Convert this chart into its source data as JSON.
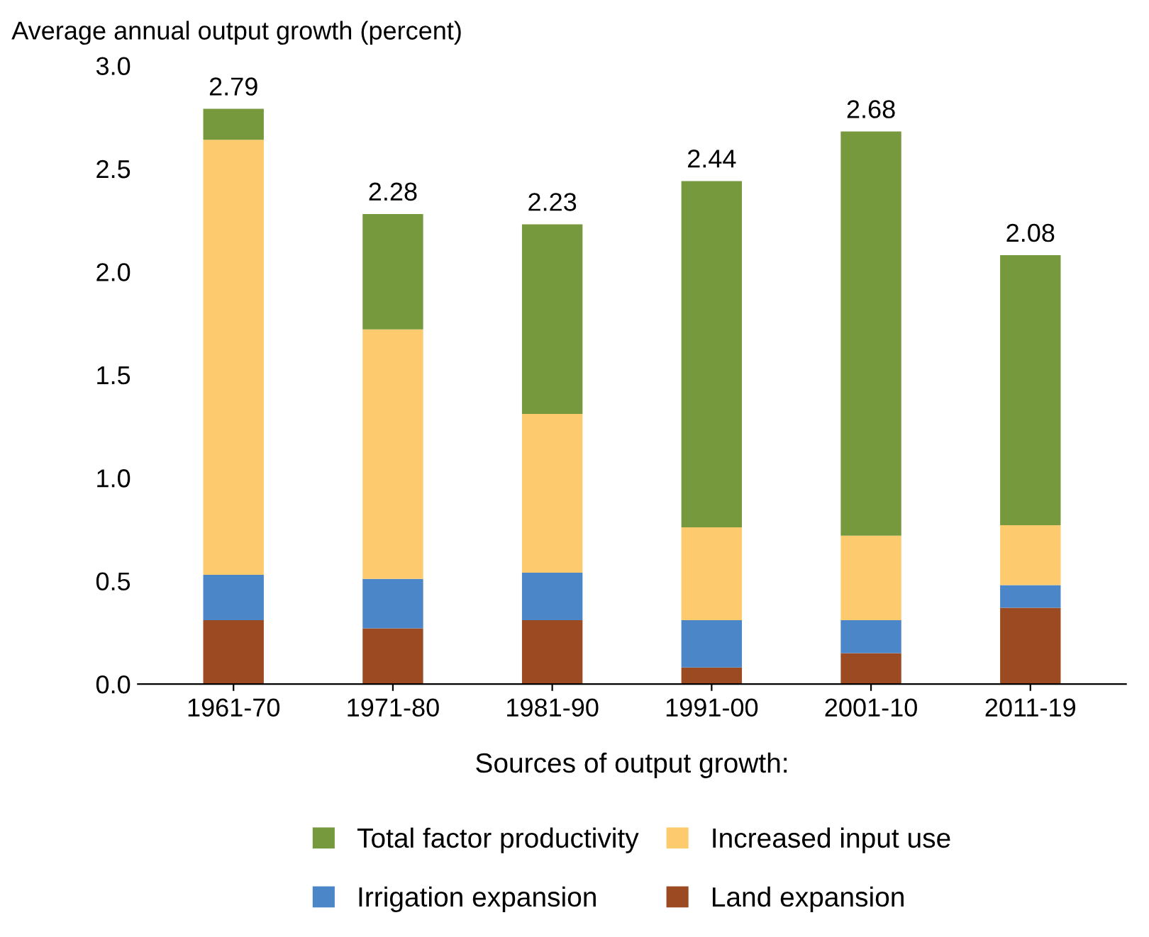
{
  "chart_data": {
    "type": "bar",
    "stacked": true,
    "ylabel": "Average annual output growth (percent)",
    "categories": [
      "1961-70",
      "1971-80",
      "1981-90",
      "1991-00",
      "2001-10",
      "2011-19"
    ],
    "series": [
      {
        "name": "Land expansion",
        "color": "#9c4a22",
        "values": [
          0.31,
          0.27,
          0.31,
          0.08,
          0.15,
          0.37
        ]
      },
      {
        "name": "Irrigation expansion",
        "color": "#4a86c8",
        "values": [
          0.22,
          0.24,
          0.23,
          0.23,
          0.16,
          0.11
        ]
      },
      {
        "name": "Increased input use",
        "color": "#fdcb6e",
        "values": [
          2.11,
          1.21,
          0.77,
          0.45,
          0.41,
          0.29
        ]
      },
      {
        "name": "Total factor productivity",
        "color": "#77993d",
        "values": [
          0.15,
          0.56,
          0.92,
          1.68,
          1.96,
          1.31
        ]
      }
    ],
    "totals": [
      "2.79",
      "2.28",
      "2.23",
      "2.44",
      "2.68",
      "2.08"
    ],
    "ylim": [
      0,
      3.0
    ],
    "yticks": [
      {
        "value": 0,
        "label": "0.0"
      },
      {
        "value": 0.5,
        "label": "0.5"
      },
      {
        "value": 1.0,
        "label": "1.0"
      },
      {
        "value": 1.5,
        "label": "1.5"
      },
      {
        "value": 2.0,
        "label": "2.0"
      },
      {
        "value": 2.5,
        "label": "2.5"
      },
      {
        "value": 3.0,
        "label": "3.0"
      }
    ],
    "legend_title": "Sources of output growth:",
    "legend": "bottom",
    "grid": false
  }
}
